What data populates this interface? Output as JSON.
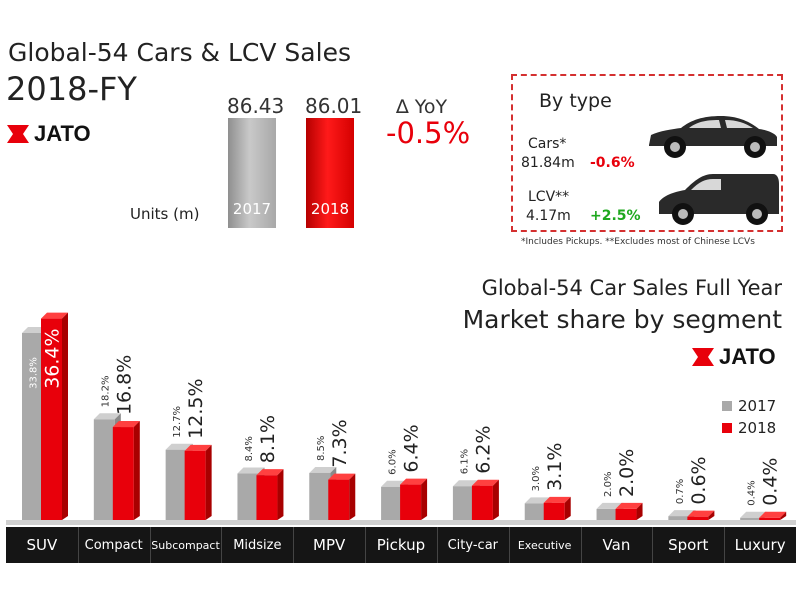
{
  "header": {
    "title_line1": "Global-54 Cars & LCV Sales",
    "title_line2": "2018-FY",
    "brand": "JATO"
  },
  "totals": {
    "units_label": "Units (m)",
    "year_2017_value": "86.43",
    "year_2017_label": "2017",
    "year_2018_value": "86.01",
    "year_2018_label": "2018",
    "yoy_label": "∆ YoY",
    "yoy_value": "-0.5%"
  },
  "by_type": {
    "title": "By type",
    "cars_name": "Cars*",
    "cars_value": "81.84m",
    "cars_change": "-0.6%",
    "lcv_name": "LCV**",
    "lcv_value": "4.17m",
    "lcv_change": "+2.5%",
    "footnote": "*Includes Pickups. **Excludes most of Chinese LCVs"
  },
  "segment_section": {
    "title_line1": "Global-54 Car Sales Full Year",
    "title_line2": "Market share by segment",
    "brand": "JATO",
    "legend_2017": "2017",
    "legend_2018": "2018"
  },
  "colors": {
    "red": "#e8000b",
    "green": "#1ea81e",
    "grey": "#a9a9a9",
    "dark": "#151515"
  },
  "chart_data": {
    "type": "bar",
    "title": "Market share by segment",
    "categories": [
      "SUV",
      "Compact",
      "Subcompact",
      "Midsize",
      "MPV",
      "Pickup",
      "City-car",
      "Executive",
      "Van",
      "Sport",
      "Luxury"
    ],
    "series": [
      {
        "name": "2017",
        "values": [
          33.8,
          18.2,
          12.7,
          8.4,
          8.5,
          6.0,
          6.1,
          3.0,
          2.0,
          0.7,
          0.4
        ],
        "labels": [
          "33.8%",
          "18.2%",
          "12.7%",
          "8.4%",
          "8.5%",
          "6.0%",
          "6.1%",
          "3.0%",
          "2.0%",
          "0.7%",
          "0.4%"
        ]
      },
      {
        "name": "2018",
        "values": [
          36.4,
          16.8,
          12.5,
          8.1,
          7.3,
          6.4,
          6.2,
          3.1,
          2.0,
          0.6,
          0.4
        ],
        "labels": [
          "36.4%",
          "16.8%",
          "12.5%",
          "8.1%",
          "7.3%",
          "6.4%",
          "6.2%",
          "3.1%",
          "2.0%",
          "0.6%",
          "0.4%"
        ]
      }
    ],
    "ylim": [
      0,
      40
    ]
  },
  "icons": {
    "brand_mark": "jato-flag-icon",
    "car": "sedan-car-icon",
    "lcv": "van-icon"
  }
}
